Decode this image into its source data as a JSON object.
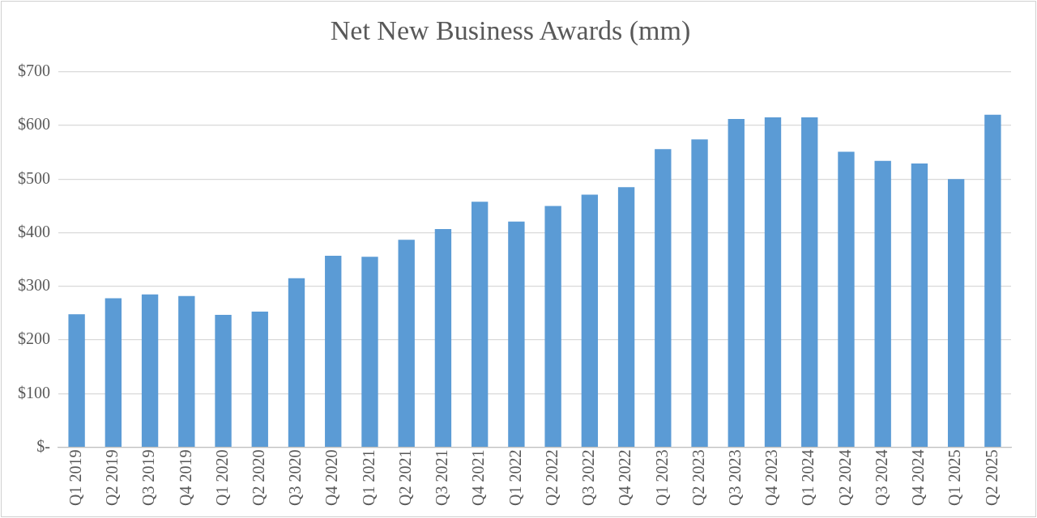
{
  "chart_data": {
    "type": "bar",
    "title": "Net New Business Awards (mm)",
    "categories": [
      "Q1 2019",
      "Q2 2019",
      "Q3 2019",
      "Q4 2019",
      "Q1 2020",
      "Q2 2020",
      "Q3 2020",
      "Q4 2020",
      "Q1 2021",
      "Q2 2021",
      "Q3 2021",
      "Q4 2021",
      "Q1 2022",
      "Q2 2022",
      "Q3 2022",
      "Q4 2022",
      "Q1 2023",
      "Q2 2023",
      "Q3 2023",
      "Q4 2023",
      "Q1 2024",
      "Q2 2024",
      "Q3 2024",
      "Q4 2024",
      "Q1 2025",
      "Q2 2025"
    ],
    "values": [
      248,
      278,
      285,
      282,
      247,
      253,
      315,
      357,
      355,
      387,
      407,
      458,
      421,
      450,
      471,
      485,
      556,
      574,
      612,
      615,
      615,
      551,
      534,
      529,
      500,
      620
    ],
    "color": "#5b9bd5",
    "ylim": [
      0,
      700
    ],
    "yticks": [
      {
        "value": 0,
        "label": "$-"
      },
      {
        "value": 100,
        "label": "$100"
      },
      {
        "value": 200,
        "label": "$200"
      },
      {
        "value": 300,
        "label": "$300"
      },
      {
        "value": 400,
        "label": "$400"
      },
      {
        "value": 500,
        "label": "$500"
      },
      {
        "value": 600,
        "label": "$600"
      },
      {
        "value": 700,
        "label": "$700"
      }
    ],
    "grid": "y",
    "legend": false
  }
}
